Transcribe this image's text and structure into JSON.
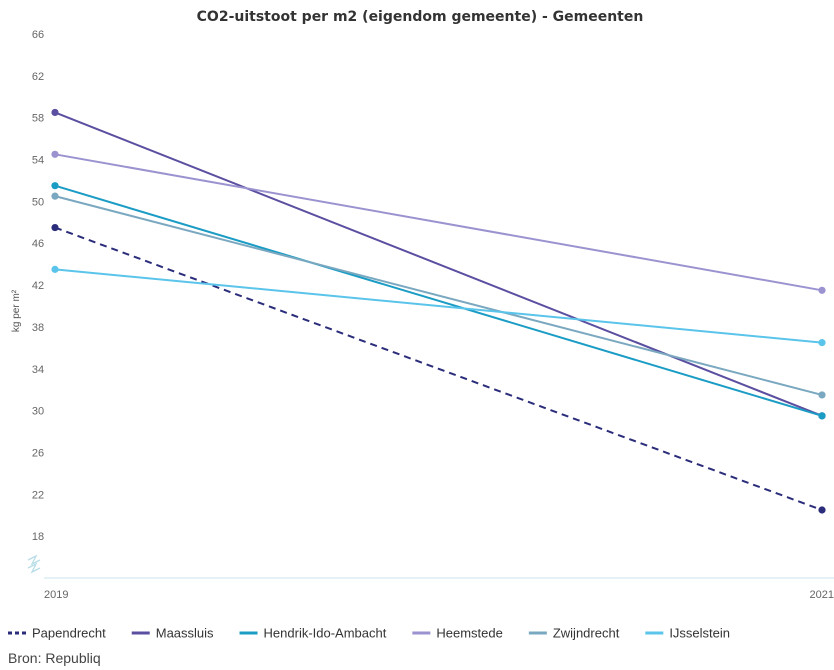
{
  "chart_data": {
    "type": "line",
    "title": "CO2-uitstoot per m2 (eigendom gemeente) - Gemeenten",
    "ylabel": "kg per m²",
    "xlabel": "",
    "x": [
      "2019",
      "2021"
    ],
    "ylim": [
      14,
      66
    ],
    "yticks": [
      18,
      22,
      26,
      30,
      34,
      38,
      42,
      46,
      50,
      54,
      58,
      62,
      66
    ],
    "grid": false,
    "legend_position": "bottom",
    "series": [
      {
        "name": "Papendrecht",
        "values": [
          47.5,
          20.5
        ],
        "color": "#2b2d7b",
        "dashed": true
      },
      {
        "name": "Maassluis",
        "values": [
          58.5,
          29.5
        ],
        "color": "#5a4fa0",
        "dashed": false
      },
      {
        "name": "Hendrik-Ido-Ambacht",
        "values": [
          51.5,
          29.5
        ],
        "color": "#1a9cc4",
        "dashed": false
      },
      {
        "name": "Heemstede",
        "values": [
          54.5,
          41.5
        ],
        "color": "#9a93d0",
        "dashed": false
      },
      {
        "name": "Zwijndrecht",
        "values": [
          50.5,
          31.5
        ],
        "color": "#7aa8c0",
        "dashed": false
      },
      {
        "name": "IJsselstein",
        "values": [
          43.5,
          36.5
        ],
        "color": "#5ac4ea",
        "dashed": false
      }
    ]
  },
  "source": "Bron: Republiq"
}
